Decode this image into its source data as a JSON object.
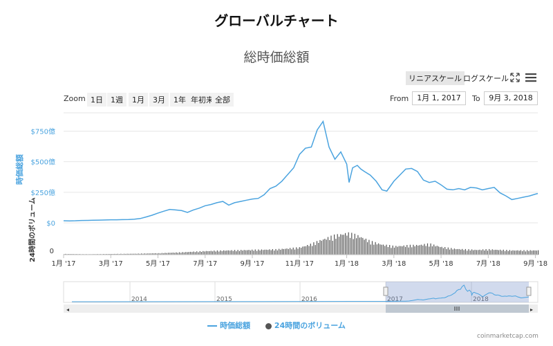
{
  "page_title": "グローバルチャート",
  "toolbar": {
    "scale_linear": "リニアスケール",
    "scale_log": "ログスケール",
    "zoom_label": "Zoom",
    "zoom_buttons": [
      "1日",
      "1週",
      "1月",
      "3月",
      "1年",
      "年初来",
      "全部"
    ],
    "from_label": "From",
    "from_value": "1月 1, 2017",
    "to_label": "To",
    "to_value": "9月 3, 2018"
  },
  "chart_data": {
    "type": "line",
    "title": "総時価総額",
    "x_tick_labels": [
      "1月 '17",
      "3月 '17",
      "5月 '17",
      "7月 '17",
      "9月 '17",
      "11月 '17",
      "1月 '18",
      "3月 '18",
      "5月 '18",
      "7月 '18",
      "9月 '18"
    ],
    "y_axis": {
      "label": "時価総額",
      "tick_labels": [
        "$0",
        "$250億",
        "$500億",
        "$750億"
      ],
      "ylim": [
        0,
        900
      ]
    },
    "volume_axis": {
      "label": "24時間のボリューム",
      "tick_labels": [
        "0"
      ]
    },
    "series": [
      {
        "name": "時価総額",
        "color": "#4aa3df",
        "x": [
          0,
          0.25,
          0.5,
          0.75,
          1,
          1.25,
          1.5,
          1.75,
          2,
          2.25,
          2.5,
          2.75,
          3,
          3.25,
          3.5,
          3.75,
          4,
          4.25,
          4.5,
          4.75,
          5,
          5.25,
          5.5,
          5.75,
          6,
          6.25,
          6.5,
          6.75,
          7,
          7.25,
          7.5,
          7.75,
          8,
          8.25,
          8.5,
          8.75,
          9,
          9.25,
          9.5,
          9.75,
          10,
          10.25,
          10.5,
          10.75,
          11,
          11.25,
          11.5,
          11.75,
          12,
          12.1,
          12.25,
          12.45,
          12.6,
          12.75,
          13,
          13.25,
          13.5,
          13.7,
          13.85,
          14,
          14.25,
          14.5,
          14.75,
          15,
          15.25,
          15.5,
          15.75,
          16,
          16.25,
          16.5,
          16.75,
          17,
          17.25,
          17.5,
          17.75,
          18,
          18.25,
          18.5,
          18.75,
          19,
          19.25,
          19.5,
          19.75,
          20,
          20.1
        ],
        "values": [
          17,
          16,
          17,
          19,
          20,
          21,
          22,
          23,
          25,
          25,
          26,
          27,
          30,
          35,
          48,
          62,
          80,
          95,
          110,
          105,
          100,
          85,
          105,
          120,
          140,
          150,
          165,
          175,
          145,
          165,
          175,
          185,
          195,
          200,
          230,
          280,
          300,
          340,
          395,
          450,
          560,
          610,
          620,
          760,
          830,
          620,
          520,
          580,
          480,
          330,
          450,
          470,
          440,
          420,
          390,
          340,
          270,
          260,
          300,
          340,
          390,
          440,
          445,
          420,
          350,
          330,
          340,
          310,
          275,
          270,
          280,
          270,
          290,
          285,
          270,
          280,
          290,
          245,
          220,
          190,
          200,
          210,
          220,
          235,
          240
        ]
      },
      {
        "name": "24時間のボリューム",
        "color": "#555555",
        "x": [
          0,
          1,
          2,
          3,
          4,
          5,
          6,
          7,
          8,
          9,
          10,
          10.5,
          11,
          11.5,
          12,
          12.5,
          13,
          13.5,
          14,
          14.5,
          15,
          15.5,
          16,
          16.5,
          17,
          17.5,
          18,
          18.5,
          19,
          19.5,
          20
        ],
        "values": [
          3,
          2,
          3,
          4,
          6,
          10,
          15,
          18,
          20,
          22,
          30,
          45,
          65,
          80,
          90,
          78,
          55,
          42,
          35,
          38,
          40,
          45,
          32,
          25,
          22,
          20,
          22,
          20,
          18,
          18,
          18
        ]
      }
    ],
    "navigator": {
      "year_labels": [
        "2014",
        "2015",
        "2016",
        "2017",
        "2018"
      ]
    },
    "legend_position": "bottom-center"
  },
  "legend": {
    "items": [
      {
        "label": "時価総額",
        "color": "#4aa3df"
      },
      {
        "label": "24時間のボリューム",
        "color": "#555555"
      }
    ]
  },
  "credit": "coinmarketcap.com"
}
